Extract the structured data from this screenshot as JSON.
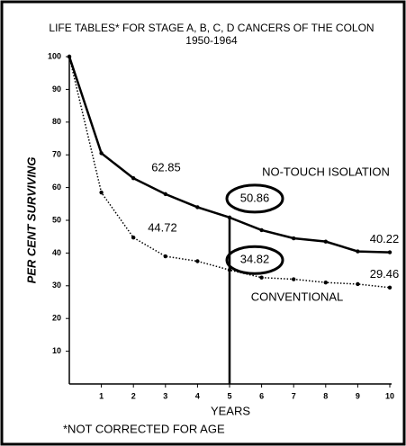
{
  "chart_data": {
    "type": "line",
    "title": "LIFE TABLES* FOR STAGE A, B, C, D CANCERS OF THE COLON",
    "subtitle": "1950-1964",
    "ylabel": "PER CENT SURVIVING",
    "xlabel": "YEARS",
    "footnote": "*NOT CORRECTED FOR AGE",
    "x": [
      0,
      1,
      2,
      3,
      4,
      5,
      6,
      7,
      8,
      9,
      10
    ],
    "xlim": [
      0,
      10
    ],
    "xticks": [
      1,
      2,
      3,
      4,
      5,
      6,
      7,
      8,
      9,
      10
    ],
    "ylim": [
      0,
      100
    ],
    "yticks": [
      10,
      20,
      30,
      40,
      50,
      60,
      70,
      80,
      90,
      100
    ],
    "vline_x": 5,
    "series": [
      {
        "name": "NO-TOUCH ISOLATION",
        "color": "#000000",
        "style": "solid",
        "values": [
          100,
          70.5,
          62.85,
          58,
          54,
          50.86,
          47,
          44.5,
          43.5,
          40.5,
          40.22
        ],
        "value_labels": [
          null,
          null,
          "62.85",
          null,
          null,
          "50.86",
          null,
          null,
          null,
          null,
          "40.22"
        ]
      },
      {
        "name": "CONVENTIONAL",
        "color": "#000000",
        "style": "dotted",
        "values": [
          100,
          58.5,
          44.72,
          39,
          37.5,
          34.82,
          32.5,
          32,
          31,
          30.5,
          29.46
        ],
        "value_labels": [
          null,
          null,
          "44.72",
          null,
          null,
          "34.82",
          null,
          null,
          null,
          null,
          "29.46"
        ]
      }
    ]
  }
}
